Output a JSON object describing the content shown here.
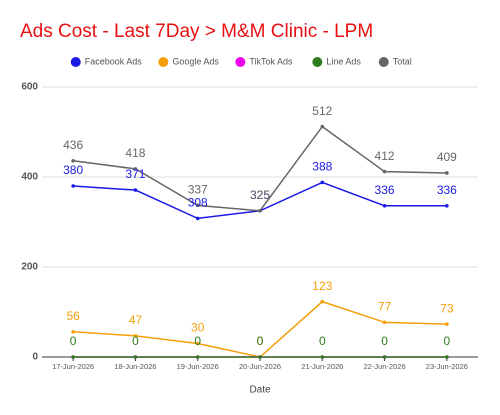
{
  "chart_data": {
    "type": "line",
    "title": "Ads Cost - Last 7Day > M&M Clinic - LPM",
    "x_label": "Date",
    "categories": [
      "17-Jun-2026",
      "18-Jun-2026",
      "19-Jun-2026",
      "20-Jun-2026",
      "21-Jun-2026",
      "22-Jun-2026",
      "23-Jun-2026"
    ],
    "series": [
      {
        "name": "Facebook Ads",
        "color": "#1a1ae6",
        "values": [
          380,
          371,
          308,
          325,
          388,
          336,
          336
        ],
        "data_labels": true
      },
      {
        "name": "Google Ads",
        "color": "#f59e0b",
        "values": [
          56,
          47,
          30,
          0,
          123,
          77,
          73
        ],
        "data_labels": true
      },
      {
        "name": "TikTok Ads",
        "color": "#ee00ee",
        "values": [
          0,
          0,
          0,
          0,
          0,
          0,
          0
        ],
        "data_labels": false
      },
      {
        "name": "Line Ads",
        "color": "#2e7d1e",
        "values": [
          0,
          0,
          0,
          0,
          0,
          0,
          0
        ],
        "data_labels": true
      },
      {
        "name": "Total",
        "color": "#666666",
        "values": [
          436,
          418,
          337,
          325,
          512,
          412,
          409
        ],
        "data_labels": true
      }
    ],
    "ylim": [
      0,
      600
    ],
    "yticks": [
      0,
      200,
      400,
      600
    ],
    "grid": true,
    "legend": "top"
  }
}
